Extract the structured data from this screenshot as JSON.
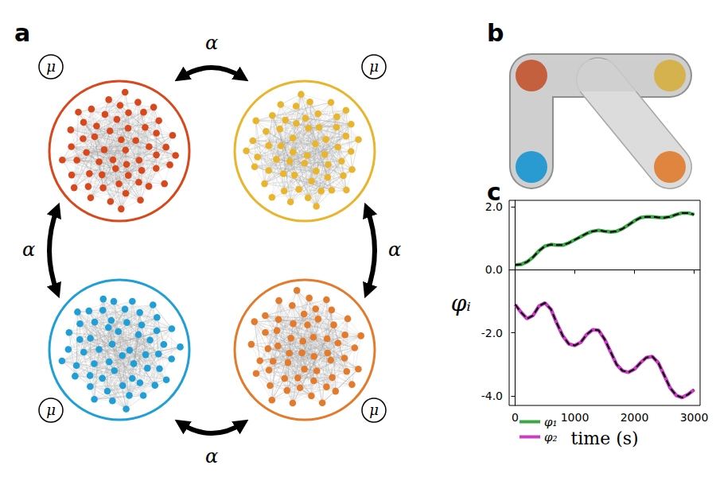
{
  "panels": {
    "a": {
      "label": "a",
      "coupling": "α",
      "parameter": "μ",
      "clusters": [
        {
          "color": "#d9481c"
        },
        {
          "color": "#e9b52c"
        },
        {
          "color": "#1f9fd5"
        },
        {
          "color": "#e47b2c"
        }
      ]
    },
    "b": {
      "label": "b",
      "nodes": [
        {
          "color": "#c4603e"
        },
        {
          "color": "#d5b24e"
        },
        {
          "color": "#2a9bd0"
        },
        {
          "color": "#df8540"
        }
      ]
    },
    "c": {
      "label": "c"
    }
  },
  "chart_data": {
    "type": "line",
    "xlabel": "time (s)",
    "ylabel": "φᵢ",
    "x": [
      0,
      100,
      200,
      300,
      400,
      500,
      600,
      700,
      800,
      900,
      1000,
      1100,
      1200,
      1300,
      1400,
      1500,
      1600,
      1700,
      1800,
      1900,
      2000,
      2100,
      2200,
      2300,
      2400,
      2500,
      2600,
      2700,
      2800,
      2900,
      3000
    ],
    "series": [
      {
        "name": "φ₁",
        "color": "#3aa845",
        "line_style": "solid",
        "values": [
          0.15,
          0.17,
          0.25,
          0.4,
          0.6,
          0.75,
          0.8,
          0.78,
          0.78,
          0.85,
          0.95,
          1.05,
          1.15,
          1.22,
          1.25,
          1.22,
          1.2,
          1.22,
          1.3,
          1.42,
          1.55,
          1.65,
          1.68,
          1.68,
          1.66,
          1.65,
          1.68,
          1.75,
          1.8,
          1.8,
          1.75
        ]
      },
      {
        "name": "φ₂",
        "color": "#c93fc4",
        "line_style": "solid",
        "values": [
          -1.1,
          -1.35,
          -1.55,
          -1.45,
          -1.15,
          -1.05,
          -1.25,
          -1.7,
          -2.1,
          -2.35,
          -2.4,
          -2.3,
          -2.05,
          -1.9,
          -1.92,
          -2.2,
          -2.6,
          -3.0,
          -3.2,
          -3.25,
          -3.15,
          -2.95,
          -2.78,
          -2.75,
          -2.95,
          -3.35,
          -3.75,
          -3.98,
          -4.05,
          -3.95,
          -3.8
        ]
      },
      {
        "color": "#000000",
        "line_style": "dashed",
        "values": [
          0.15,
          0.17,
          0.25,
          0.4,
          0.6,
          0.75,
          0.8,
          0.78,
          0.78,
          0.85,
          0.95,
          1.05,
          1.15,
          1.22,
          1.25,
          1.22,
          1.2,
          1.22,
          1.3,
          1.42,
          1.55,
          1.65,
          1.68,
          1.68,
          1.66,
          1.65,
          1.68,
          1.75,
          1.8,
          1.8,
          1.75
        ]
      },
      {
        "color": "#000000",
        "line_style": "dashed",
        "values": [
          -1.1,
          -1.35,
          -1.55,
          -1.45,
          -1.15,
          -1.05,
          -1.25,
          -1.7,
          -2.1,
          -2.35,
          -2.4,
          -2.3,
          -2.05,
          -1.9,
          -1.92,
          -2.2,
          -2.6,
          -3.0,
          -3.2,
          -3.25,
          -3.15,
          -2.95,
          -2.78,
          -2.75,
          -2.95,
          -3.35,
          -3.75,
          -3.98,
          -4.05,
          -3.95,
          -3.8
        ]
      }
    ],
    "xlim": [
      -100,
      3100
    ],
    "xticks": [
      0,
      1000,
      2000,
      3000
    ],
    "ylim": [
      -4.3,
      2.2
    ],
    "yticks": [
      {
        "value": -4,
        "label": "-4.0"
      },
      {
        "value": -2,
        "label": "-2.0"
      },
      {
        "value": 0,
        "label": "0.0"
      },
      {
        "value": 2,
        "label": "2.0"
      }
    ],
    "legend": "lower left",
    "grid": false
  }
}
